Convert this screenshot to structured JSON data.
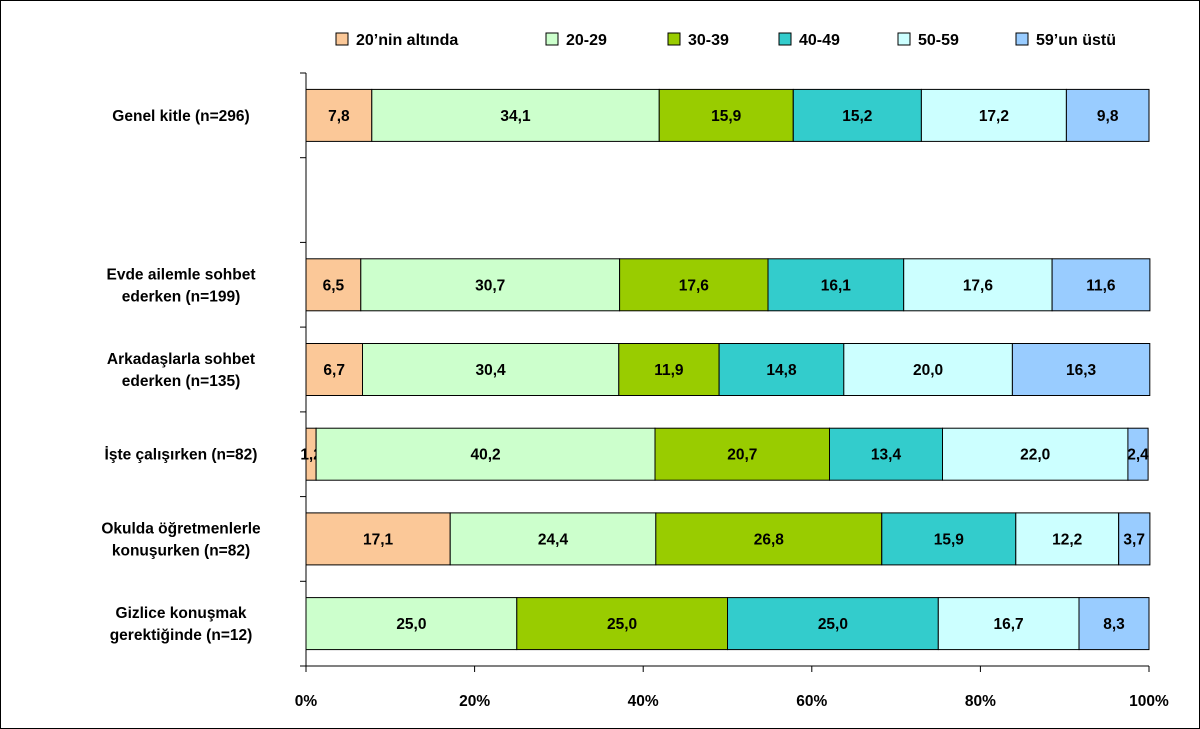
{
  "chart_data": {
    "type": "bar",
    "orientation": "horizontal",
    "stacked": "percent",
    "categories": [
      [
        "Genel kitle (n=296)"
      ],
      [],
      [
        "Evde ailemle sohbet",
        "ederken (n=199)"
      ],
      [
        "Arkadaşlarla sohbet",
        "ederken (n=135)"
      ],
      [
        "İşte çalışırken (n=82)"
      ],
      [
        "Okulda öğretmenlerle",
        "konuşurken (n=82)"
      ],
      [
        "Gizlice konuşmak",
        "gerektiğinde (n=12)"
      ]
    ],
    "series": [
      {
        "name": "20’nin altında",
        "color": "#fbc898",
        "values": [
          7.8,
          null,
          6.5,
          6.7,
          1.2,
          17.1,
          0
        ],
        "labels": [
          "7,8",
          "",
          "6,5",
          "6,7",
          "1,2",
          "17,1",
          ""
        ]
      },
      {
        "name": "20-29",
        "color": "#ccffcc",
        "values": [
          34.1,
          null,
          30.7,
          30.4,
          40.2,
          24.4,
          25.0
        ],
        "labels": [
          "34,1",
          "",
          "30,7",
          "30,4",
          "40,2",
          "24,4",
          "25,0"
        ]
      },
      {
        "name": "30-39",
        "color": "#99cc00",
        "values": [
          15.9,
          null,
          17.6,
          11.9,
          20.7,
          26.8,
          25.0
        ],
        "labels": [
          "15,9",
          "",
          "17,6",
          "11,9",
          "20,7",
          "26,8",
          "25,0"
        ]
      },
      {
        "name": "40-49",
        "color": "#33cccc",
        "values": [
          15.2,
          null,
          16.1,
          14.8,
          13.4,
          15.9,
          25.0
        ],
        "labels": [
          "15,2",
          "",
          "16,1",
          "14,8",
          "13,4",
          "15,9",
          "25,0"
        ]
      },
      {
        "name": "50-59",
        "color": "#ccffff",
        "values": [
          17.2,
          null,
          17.6,
          20.0,
          22.0,
          12.2,
          16.7
        ],
        "labels": [
          "17,2",
          "",
          "17,6",
          "20,0",
          "22,0",
          "12,2",
          "16,7"
        ]
      },
      {
        "name": "59’un üstü",
        "color": "#99ccff",
        "values": [
          9.8,
          null,
          11.6,
          16.3,
          2.4,
          3.7,
          8.3
        ],
        "labels": [
          "9,8",
          "",
          "11,6",
          "16,3",
          "2,4",
          "3,7",
          "8,3"
        ]
      }
    ],
    "xticks": [
      "0%",
      "20%",
      "40%",
      "60%",
      "80%",
      "100%"
    ],
    "xlim": [
      0,
      100
    ],
    "grid": false,
    "legend": "top",
    "title": "",
    "xlabel": "",
    "ylabel": ""
  }
}
